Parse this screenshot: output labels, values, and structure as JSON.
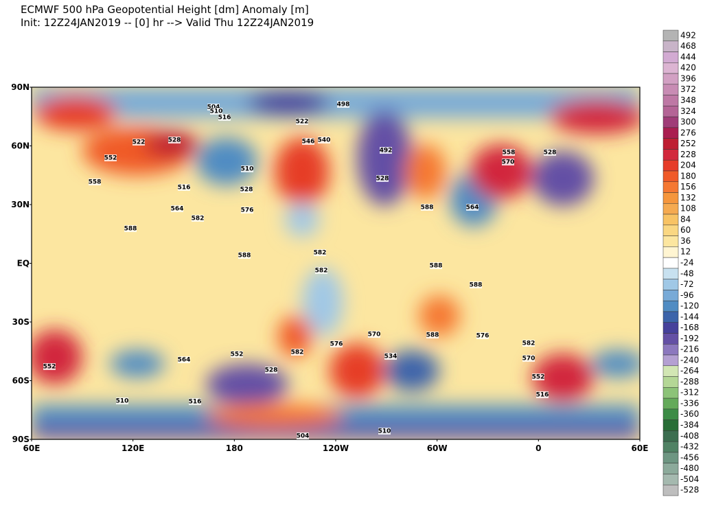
{
  "header": {
    "lines": [
      "ECMWF 500 hPa Geopotential Height [dm] Anomaly [m]",
      "Init: 12Z24JAN2019 -- [0] hr --> Valid Thu 12Z24JAN2019"
    ]
  },
  "map": {
    "lat_labels": [
      "90N",
      "60N",
      "30N",
      "EQ",
      "30S",
      "60S",
      "90S"
    ],
    "lon_labels": [
      "60E",
      "120E",
      "180",
      "120W",
      "60W",
      "0",
      "60E"
    ],
    "contour_labels": [
      "504",
      "510",
      "516",
      "522",
      "528",
      "552",
      "558",
      "516",
      "510",
      "528",
      "564",
      "576",
      "582",
      "588",
      "498",
      "522",
      "546",
      "540",
      "492",
      "528",
      "558",
      "570",
      "564",
      "588",
      "582",
      "588",
      "588",
      "588",
      "582",
      "576",
      "570",
      "534",
      "552",
      "528",
      "516",
      "510",
      "504",
      "510",
      "582",
      "570",
      "552",
      "516",
      "588",
      "582",
      "576",
      "528",
      "552",
      "564"
    ]
  },
  "colorbar": {
    "levels": [
      {
        "label": 492,
        "color": "#b4b4b4"
      },
      {
        "label": 468,
        "color": "#c8b4c8"
      },
      {
        "label": 444,
        "color": "#d2aad2"
      },
      {
        "label": 420,
        "color": "#dcb4d2"
      },
      {
        "label": 396,
        "color": "#d2a0c3"
      },
      {
        "label": 372,
        "color": "#c88cb4"
      },
      {
        "label": 348,
        "color": "#be78a5"
      },
      {
        "label": 324,
        "color": "#b46496"
      },
      {
        "label": 300,
        "color": "#a03c78"
      },
      {
        "label": 276,
        "color": "#aa1e50"
      },
      {
        "label": 252,
        "color": "#be1e32"
      },
      {
        "label": 228,
        "color": "#d2283c"
      },
      {
        "label": 204,
        "color": "#e63c28"
      },
      {
        "label": 180,
        "color": "#f05a28"
      },
      {
        "label": 156,
        "color": "#f57832"
      },
      {
        "label": 132,
        "color": "#f5963c"
      },
      {
        "label": 108,
        "color": "#f5aa50"
      },
      {
        "label": 84,
        "color": "#f8c364"
      },
      {
        "label": 60,
        "color": "#fad782"
      },
      {
        "label": 36,
        "color": "#fce6a0"
      },
      {
        "label": 12,
        "color": "#fff5d2"
      },
      {
        "label": -24,
        "color": "#ffffff"
      },
      {
        "label": -48,
        "color": "#c8e1f0"
      },
      {
        "label": -72,
        "color": "#a0c8e6"
      },
      {
        "label": -96,
        "color": "#78aad7"
      },
      {
        "label": -120,
        "color": "#508cc3"
      },
      {
        "label": -144,
        "color": "#3c64aa"
      },
      {
        "label": -168,
        "color": "#46419b"
      },
      {
        "label": -192,
        "color": "#6450a5"
      },
      {
        "label": -216,
        "color": "#8c78be"
      },
      {
        "label": -240,
        "color": "#b4a0d2"
      },
      {
        "label": -264,
        "color": "#d2e6b4"
      },
      {
        "label": -288,
        "color": "#b4d796"
      },
      {
        "label": -312,
        "color": "#8cc378"
      },
      {
        "label": -336,
        "color": "#64aa5a"
      },
      {
        "label": -360,
        "color": "#3c8c46"
      },
      {
        "label": -384,
        "color": "#286e37"
      },
      {
        "label": -408,
        "color": "#3c6e50"
      },
      {
        "label": -432,
        "color": "#508264"
      },
      {
        "label": -456,
        "color": "#6e9682"
      },
      {
        "label": -480,
        "color": "#8caa9b"
      },
      {
        "label": -504,
        "color": "#a5b9af"
      },
      {
        "label": -528,
        "color": "#bebebe"
      }
    ]
  }
}
